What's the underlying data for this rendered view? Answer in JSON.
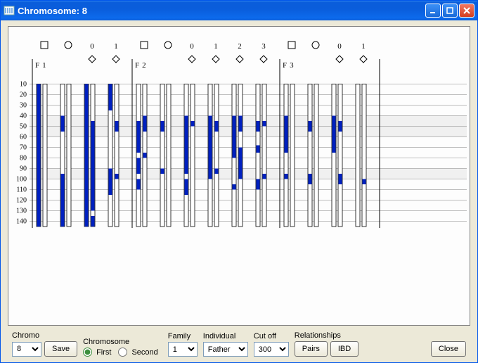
{
  "window": {
    "title": "Chromosome: 8"
  },
  "plot": {
    "yTicks": [
      10,
      20,
      30,
      40,
      50,
      60,
      70,
      80,
      90,
      100,
      110,
      120,
      130,
      140
    ],
    "yTickFont": 10,
    "yHighlightBands": [
      [
        40,
        60
      ],
      [
        90,
        100
      ]
    ],
    "lineColor": "#808080",
    "barFill": "#0020c0",
    "trackOutline": "#000000",
    "canvasBg": "#fdfdfd",
    "panelDividerColor": "#000000",
    "families": [
      {
        "label": "F1",
        "members": [
          {
            "symbol": "square",
            "label": "",
            "tracks": [
              {
                "segs": [
                  [
                    10,
                    145
                  ]
                ]
              },
              {
                "segs": []
              }
            ]
          },
          {
            "symbol": "circle",
            "label": "",
            "tracks": [
              {
                "segs": [
                  [
                    40,
                    55
                  ],
                  [
                    95,
                    145
                  ]
                ]
              },
              {
                "segs": []
              }
            ]
          },
          {
            "symbol": "diamond",
            "label": "0",
            "tracks": [
              {
                "segs": [
                  [
                    10,
                    145
                  ]
                ]
              },
              {
                "segs": [
                  [
                    45,
                    130
                  ],
                  [
                    135,
                    145
                  ]
                ]
              }
            ]
          },
          {
            "symbol": "diamond",
            "label": "1",
            "tracks": [
              {
                "segs": [
                  [
                    10,
                    35
                  ],
                  [
                    90,
                    115
                  ]
                ]
              },
              {
                "segs": [
                  [
                    45,
                    55
                  ],
                  [
                    95,
                    100
                  ]
                ]
              }
            ]
          }
        ]
      },
      {
        "label": "F2",
        "members": [
          {
            "symbol": "square",
            "label": "",
            "tracks": [
              {
                "segs": [
                  [
                    45,
                    75
                  ],
                  [
                    80,
                    95
                  ],
                  [
                    100,
                    110
                  ]
                ]
              },
              {
                "segs": [
                  [
                    40,
                    55
                  ],
                  [
                    75,
                    80
                  ]
                ]
              }
            ]
          },
          {
            "symbol": "circle",
            "label": "",
            "tracks": [
              {
                "segs": [
                  [
                    45,
                    55
                  ],
                  [
                    90,
                    95
                  ]
                ]
              },
              {
                "segs": []
              }
            ]
          },
          {
            "symbol": "diamond",
            "label": "0",
            "tracks": [
              {
                "segs": [
                  [
                    40,
                    95
                  ],
                  [
                    100,
                    115
                  ]
                ]
              },
              {
                "segs": [
                  [
                    45,
                    50
                  ]
                ]
              }
            ]
          },
          {
            "symbol": "diamond",
            "label": "1",
            "tracks": [
              {
                "segs": [
                  [
                    40,
                    100
                  ]
                ]
              },
              {
                "segs": [
                  [
                    45,
                    55
                  ],
                  [
                    90,
                    95
                  ]
                ]
              }
            ]
          },
          {
            "symbol": "diamond",
            "label": "2",
            "tracks": [
              {
                "segs": [
                  [
                    40,
                    80
                  ],
                  [
                    105,
                    110
                  ]
                ]
              },
              {
                "segs": [
                  [
                    40,
                    55
                  ],
                  [
                    70,
                    100
                  ]
                ]
              }
            ]
          },
          {
            "symbol": "diamond",
            "label": "3",
            "tracks": [
              {
                "segs": [
                  [
                    45,
                    55
                  ],
                  [
                    68,
                    75
                  ],
                  [
                    100,
                    110
                  ]
                ]
              },
              {
                "segs": [
                  [
                    45,
                    50
                  ],
                  [
                    95,
                    100
                  ]
                ]
              }
            ]
          }
        ]
      },
      {
        "label": "F3",
        "members": [
          {
            "symbol": "square",
            "label": "",
            "tracks": [
              {
                "segs": [
                  [
                    40,
                    75
                  ],
                  [
                    95,
                    100
                  ]
                ]
              },
              {
                "segs": []
              }
            ]
          },
          {
            "symbol": "circle",
            "label": "",
            "tracks": [
              {
                "segs": [
                  [
                    45,
                    55
                  ],
                  [
                    95,
                    105
                  ]
                ]
              },
              {
                "segs": []
              }
            ]
          },
          {
            "symbol": "diamond",
            "label": "0",
            "tracks": [
              {
                "segs": [
                  [
                    40,
                    75
                  ]
                ]
              },
              {
                "segs": [
                  [
                    45,
                    55
                  ],
                  [
                    95,
                    105
                  ]
                ]
              }
            ]
          },
          {
            "symbol": "diamond",
            "label": "1",
            "tracks": [
              {
                "segs": []
              },
              {
                "segs": [
                  [
                    100,
                    105
                  ]
                ]
              }
            ]
          }
        ]
      }
    ]
  },
  "controls": {
    "chromo": {
      "label": "Chromo",
      "value": "8"
    },
    "save": "Save",
    "chromosome": {
      "label": "Chromosome",
      "first": "First",
      "second": "Second",
      "selected": "first"
    },
    "family": {
      "label": "Family",
      "value": "1"
    },
    "individual": {
      "label": "Individual",
      "value": "Father"
    },
    "cutoff": {
      "label": "Cut off",
      "value": "300"
    },
    "relationships": {
      "label": "Relationships",
      "pairs": "Pairs",
      "ibd": "IBD"
    },
    "close": "Close"
  }
}
